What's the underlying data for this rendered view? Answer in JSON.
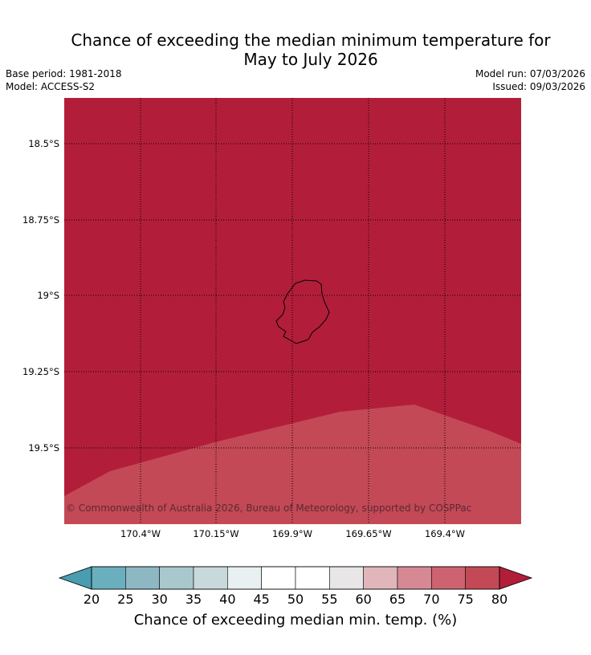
{
  "title_line1": "Chance of exceeding the median minimum temperature for",
  "title_line2": "May to July 2026",
  "base_period": "Base period: 1981-2018",
  "model": "Model: ACCESS-S2",
  "model_run": "Model run: 07/03/2026",
  "issued": "Issued: 09/03/2026",
  "map": {
    "lat_labels": [
      "18.5°S",
      "18.75°S",
      "19°S",
      "19.25°S",
      "19.5°S"
    ],
    "lon_labels": [
      "170.4°W",
      "170.15°W",
      "169.9°W",
      "169.65°W",
      "169.4°W"
    ],
    "background_color": "#b21e3a",
    "secondary_band_color": "#c34956",
    "credit": "© Commonwealth of Australia 2026, Bureau of Meteorology, supported by COSPPac"
  },
  "colorbar": {
    "ticks": [
      "20",
      "25",
      "30",
      "35",
      "40",
      "45",
      "50",
      "55",
      "60",
      "65",
      "70",
      "75",
      "80"
    ],
    "colors": [
      "#6aafbe",
      "#8db7c3",
      "#a8c8cd",
      "#c8d9dc",
      "#e9f0f2",
      "#ffffff",
      "#ffffff",
      "#e8e6e7",
      "#e0b6ba",
      "#d68993",
      "#cd6370",
      "#c34956"
    ],
    "low_extend_color": "#4a9db0",
    "high_extend_color": "#b21e3a",
    "label": "Chance of exceeding median min. temp. (%)"
  }
}
